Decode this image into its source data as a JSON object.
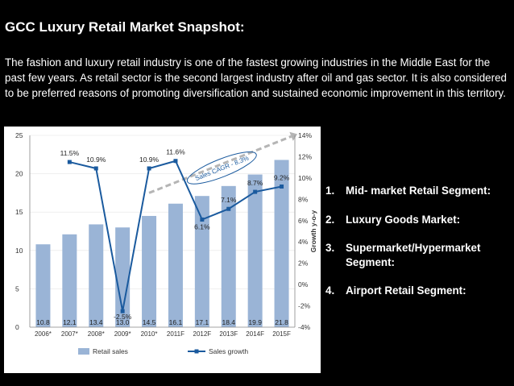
{
  "slide": {
    "title": "GCC Luxury Retail Market Snapshot:",
    "intro": "The fashion and luxury retail industry is one of the fastest growing industries in the Middle East for the past few years. As retail sector is the second largest industry after oil and gas sector. It is also considered to be preferred reasons of promoting diversification and sustained economic improvement in this territory."
  },
  "segments": [
    {
      "num": "1.",
      "label": "Mid- market Retail Segment:"
    },
    {
      "num": "2.",
      "label": "Luxury Goods Market:"
    },
    {
      "num": "3.",
      "label": "Supermarket/Hypermarket Segment:"
    },
    {
      "num": "4.",
      "label": "Airport Retail Segment:"
    }
  ],
  "chart_data": {
    "type": "bar",
    "categories": [
      "2006*",
      "2007*",
      "2008*",
      "2009*",
      "2010*",
      "2011F",
      "2012F",
      "2013F",
      "2014F",
      "2015F"
    ],
    "series": [
      {
        "name": "Retail sales",
        "type": "bar",
        "axis": "left",
        "color": "#9ab4d6",
        "values": [
          10.8,
          12.1,
          13.4,
          13.0,
          14.5,
          16.1,
          17.1,
          18.4,
          19.9,
          21.8
        ],
        "labels": [
          "10.8",
          "12.1",
          "13.4",
          "13.0",
          "14.5",
          "16.1",
          "17.1",
          "18.4",
          "19.9",
          "21.8"
        ]
      },
      {
        "name": "Sales growth",
        "type": "line",
        "axis": "right",
        "color": "#1a5a9e",
        "values": [
          null,
          11.5,
          10.9,
          -2.5,
          10.9,
          11.6,
          6.1,
          7.1,
          8.7,
          9.2
        ],
        "labels": [
          "",
          "11.5%",
          "10.9%",
          "-2.5%",
          "10.9%",
          "11.6%",
          "6.1%",
          "7.1%",
          "8.7%",
          "9.2%"
        ]
      }
    ],
    "left_ticks": [
      "0",
      "5",
      "10",
      "15",
      "20",
      "25"
    ],
    "left_ylim": [
      0,
      25
    ],
    "right_ticks": [
      "-4%",
      "-2%",
      "0%",
      "2%",
      "4%",
      "6%",
      "8%",
      "10%",
      "12%",
      "14%"
    ],
    "right_ylim": [
      -4,
      14
    ],
    "right_axis_label": "Growth y-o-y",
    "annotation": "Sales CAGR - 8.3%",
    "legend": {
      "bar": "Retail sales",
      "line": "Sales growth",
      "placement": "bottom"
    }
  }
}
